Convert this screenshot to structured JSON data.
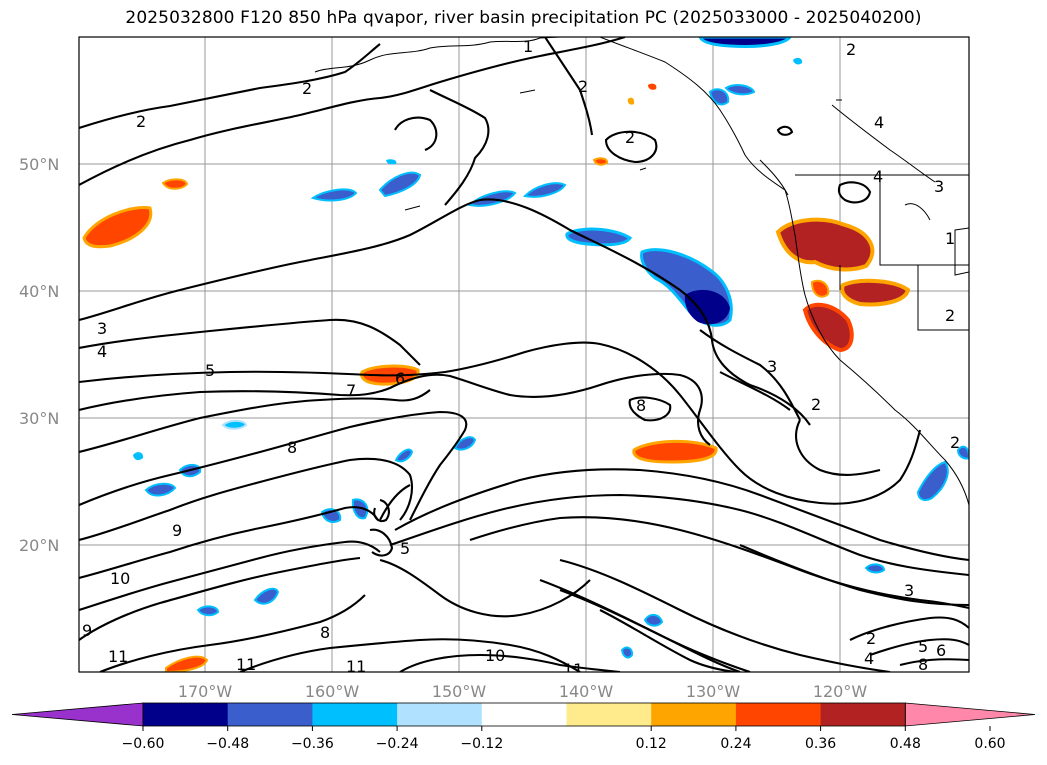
{
  "title": "2025032800 F120 850 hPa qvapor, river basin precipitation PC (2025033000 - 2025040200)",
  "latitude_labels": [
    "50°N",
    "40°N",
    "30°N",
    "20°N"
  ],
  "longitude_labels": [
    "170°W",
    "160°W",
    "150°W",
    "140°W",
    "130°W",
    "120°W"
  ],
  "contour_labels": [
    "2",
    "2",
    "2",
    "2",
    "2",
    "4",
    "4",
    "3",
    "3",
    "4",
    "5",
    "6",
    "7",
    "8",
    "8",
    "9",
    "10",
    "11",
    "11",
    "11",
    "10",
    "11",
    "9",
    "8",
    "5",
    "2",
    "2",
    "3",
    "3",
    "2",
    "4",
    "5",
    "6",
    "8",
    "1",
    "2",
    "1"
  ],
  "colorbar": {
    "ticks": [
      "−0.60",
      "−0.48",
      "−0.36",
      "−0.24",
      "−0.12",
      "0.12",
      "0.24",
      "0.36",
      "0.48",
      "0.60"
    ],
    "colors": [
      "#9932cc",
      "#00008b",
      "#3a5fcd",
      "#00bfff",
      "#b0e2ff",
      "#ffffff",
      "#ffeb8c",
      "#ffa500",
      "#ff4500",
      "#b22222",
      "#ff88aa"
    ]
  }
}
